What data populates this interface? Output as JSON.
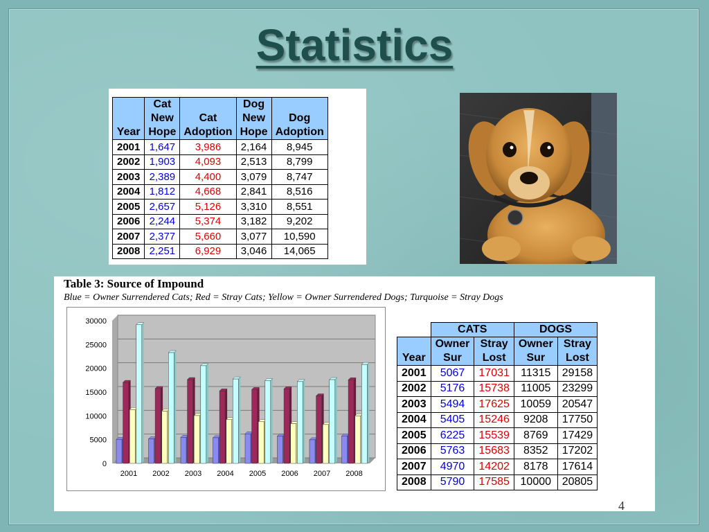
{
  "slide": {
    "title": "Statistics",
    "page_number": "4"
  },
  "adoption_table": {
    "headers": [
      [
        "Year"
      ],
      [
        "Cat",
        "New",
        "Hope"
      ],
      [
        "Cat",
        "Adoption"
      ],
      [
        "Dog",
        "New",
        "Hope"
      ],
      [
        "Dog",
        "Adoption"
      ]
    ],
    "rows": [
      {
        "year": "2001",
        "cat_new_hope": "1,647",
        "cat_adoption": "3,986",
        "dog_new_hope": "2,164",
        "dog_adoption": "8,945"
      },
      {
        "year": "2002",
        "cat_new_hope": "1,903",
        "cat_adoption": "4,093",
        "dog_new_hope": "2,513",
        "dog_adoption": "8,799"
      },
      {
        "year": "2003",
        "cat_new_hope": "2,389",
        "cat_adoption": "4,400",
        "dog_new_hope": "3,079",
        "dog_adoption": "8,747"
      },
      {
        "year": "2004",
        "cat_new_hope": "1,812",
        "cat_adoption": "4,668",
        "dog_new_hope": "2,841",
        "dog_adoption": "8,516"
      },
      {
        "year": "2005",
        "cat_new_hope": "2,657",
        "cat_adoption": "5,126",
        "dog_new_hope": "3,310",
        "dog_adoption": "8,551"
      },
      {
        "year": "2006",
        "cat_new_hope": "2,244",
        "cat_adoption": "5,374",
        "dog_new_hope": "3,182",
        "dog_adoption": "9,202"
      },
      {
        "year": "2007",
        "cat_new_hope": "2,377",
        "cat_adoption": "5,660",
        "dog_new_hope": "3,077",
        "dog_adoption": "10,590"
      },
      {
        "year": "2008",
        "cat_new_hope": "2,251",
        "cat_adoption": "6,929",
        "dog_new_hope": "3,046",
        "dog_adoption": "14,065"
      }
    ]
  },
  "photo": {
    "icon": "dog-photo"
  },
  "impound": {
    "title": "Table 3: Source of Impound",
    "subtitle": "Blue = Owner Surrendered Cats; Red = Stray Cats; Yellow = Owner Surrendered Dogs; Turquoise = Stray Dogs",
    "group_headers": [
      "CATS",
      "DOGS"
    ],
    "headers": [
      [
        "Year"
      ],
      [
        "Owner",
        "Sur"
      ],
      [
        "Stray",
        "Lost"
      ],
      [
        "Owner",
        "Sur"
      ],
      [
        "Stray",
        "Lost"
      ]
    ],
    "rows": [
      {
        "year": "2001",
        "cat_owner": "5067",
        "cat_stray": "17031",
        "dog_owner": "11315",
        "dog_stray": "29158"
      },
      {
        "year": "2002",
        "cat_owner": "5176",
        "cat_stray": "15738",
        "dog_owner": "11005",
        "dog_stray": "23299"
      },
      {
        "year": "2003",
        "cat_owner": "5494",
        "cat_stray": "17625",
        "dog_owner": "10059",
        "dog_stray": "20547"
      },
      {
        "year": "2004",
        "cat_owner": "5405",
        "cat_stray": "15246",
        "dog_owner": "9208",
        "dog_stray": "17750"
      },
      {
        "year": "2005",
        "cat_owner": "6225",
        "cat_stray": "15539",
        "dog_owner": "8769",
        "dog_stray": "17429"
      },
      {
        "year": "2006",
        "cat_owner": "5763",
        "cat_stray": "15683",
        "dog_owner": "8352",
        "dog_stray": "17202"
      },
      {
        "year": "2007",
        "cat_owner": "4970",
        "cat_stray": "14202",
        "dog_owner": "8178",
        "dog_stray": "17614"
      },
      {
        "year": "2008",
        "cat_owner": "5790",
        "cat_stray": "17585",
        "dog_owner": "10000",
        "dog_stray": "20805"
      }
    ]
  },
  "colors": {
    "cat_owner": "#8a8af0",
    "cat_stray": "#9b2a5a",
    "dog_owner": "#ffffc0",
    "dog_stray": "#c4ffff",
    "header_fill": "#99ccff",
    "blue_text": "#0000dd",
    "red_text": "#e00000"
  },
  "chart_data": {
    "type": "bar",
    "categories": [
      "2001",
      "2002",
      "2003",
      "2004",
      "2005",
      "2006",
      "2007",
      "2008"
    ],
    "series": [
      {
        "values": [
          5067,
          5176,
          5494,
          5405,
          6225,
          5763,
          4970,
          5790
        ]
      },
      {
        "values": [
          17031,
          15738,
          17625,
          15246,
          15539,
          15683,
          14202,
          17585
        ]
      },
      {
        "values": [
          11315,
          11005,
          10059,
          9208,
          8769,
          8352,
          8178,
          10000
        ]
      },
      {
        "values": [
          29158,
          23299,
          20547,
          17750,
          17429,
          17202,
          17614,
          20805
        ]
      }
    ],
    "yticks": [
      "0",
      "5000",
      "10000",
      "15000",
      "20000",
      "25000",
      "30000"
    ],
    "ylim": [
      0,
      30000
    ],
    "grid": true,
    "legend": "none",
    "style": "3d-bars"
  }
}
